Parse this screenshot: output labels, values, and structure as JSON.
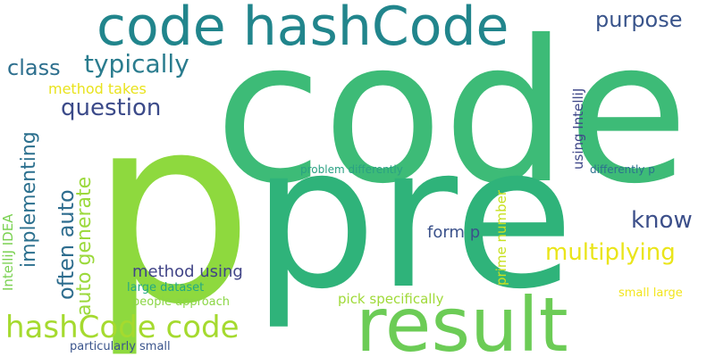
{
  "words": {
    "code": {
      "text": "code",
      "color": "#3dbb77"
    },
    "p": {
      "text": "p",
      "color": "#8ed93e"
    },
    "pre": {
      "text": "pre",
      "color": "#2fb37a"
    },
    "code_hashcode": {
      "text": "code hashCode",
      "color": "#21858c"
    },
    "result": {
      "text": "result",
      "color": "#6ccc56"
    },
    "hashcode_code": {
      "text": "hashCode code",
      "color": "#a5da2f"
    },
    "typically": {
      "text": "typically",
      "color": "#2a7c8e"
    },
    "class": {
      "text": "class",
      "color": "#2d6f8e"
    },
    "purpose": {
      "text": "purpose",
      "color": "#39548b"
    },
    "question": {
      "text": "question",
      "color": "#3b4a89"
    },
    "method_takes": {
      "text": "method takes",
      "color": "#e9e31e"
    },
    "implementing": {
      "text": "implementing",
      "color": "#2c708e"
    },
    "often_auto": {
      "text": "often auto",
      "color": "#2e6d8e"
    },
    "auto_generate": {
      "text": "auto generate",
      "color": "#9bd93b"
    },
    "intellij_idea": {
      "text": "IntelliJ IDEA",
      "color": "#7ad151"
    },
    "using_intellij": {
      "text": "using IntelliJ",
      "color": "#3f4889"
    },
    "problem_differently": {
      "text": "problem differently",
      "color": "#2aa183"
    },
    "differently_p": {
      "text": "differently p",
      "color": "#2c728e"
    },
    "know": {
      "text": "know",
      "color": "#3c4f8a"
    },
    "form_p": {
      "text": "form p",
      "color": "#3b528b"
    },
    "multiplying": {
      "text": "multiplying",
      "color": "#eae51a"
    },
    "prime_number": {
      "text": "prime number",
      "color": "#c8e020"
    },
    "method_using": {
      "text": "method using",
      "color": "#414487"
    },
    "large_dataset": {
      "text": "large dataset",
      "color": "#23a983"
    },
    "people_approach": {
      "text": "people approach",
      "color": "#8bd646"
    },
    "pick_specifically": {
      "text": "pick specifically",
      "color": "#a0da39"
    },
    "small_large": {
      "text": "small large",
      "color": "#f2e51d"
    },
    "particularly_small": {
      "text": "particularly small",
      "color": "#3a548c"
    }
  }
}
